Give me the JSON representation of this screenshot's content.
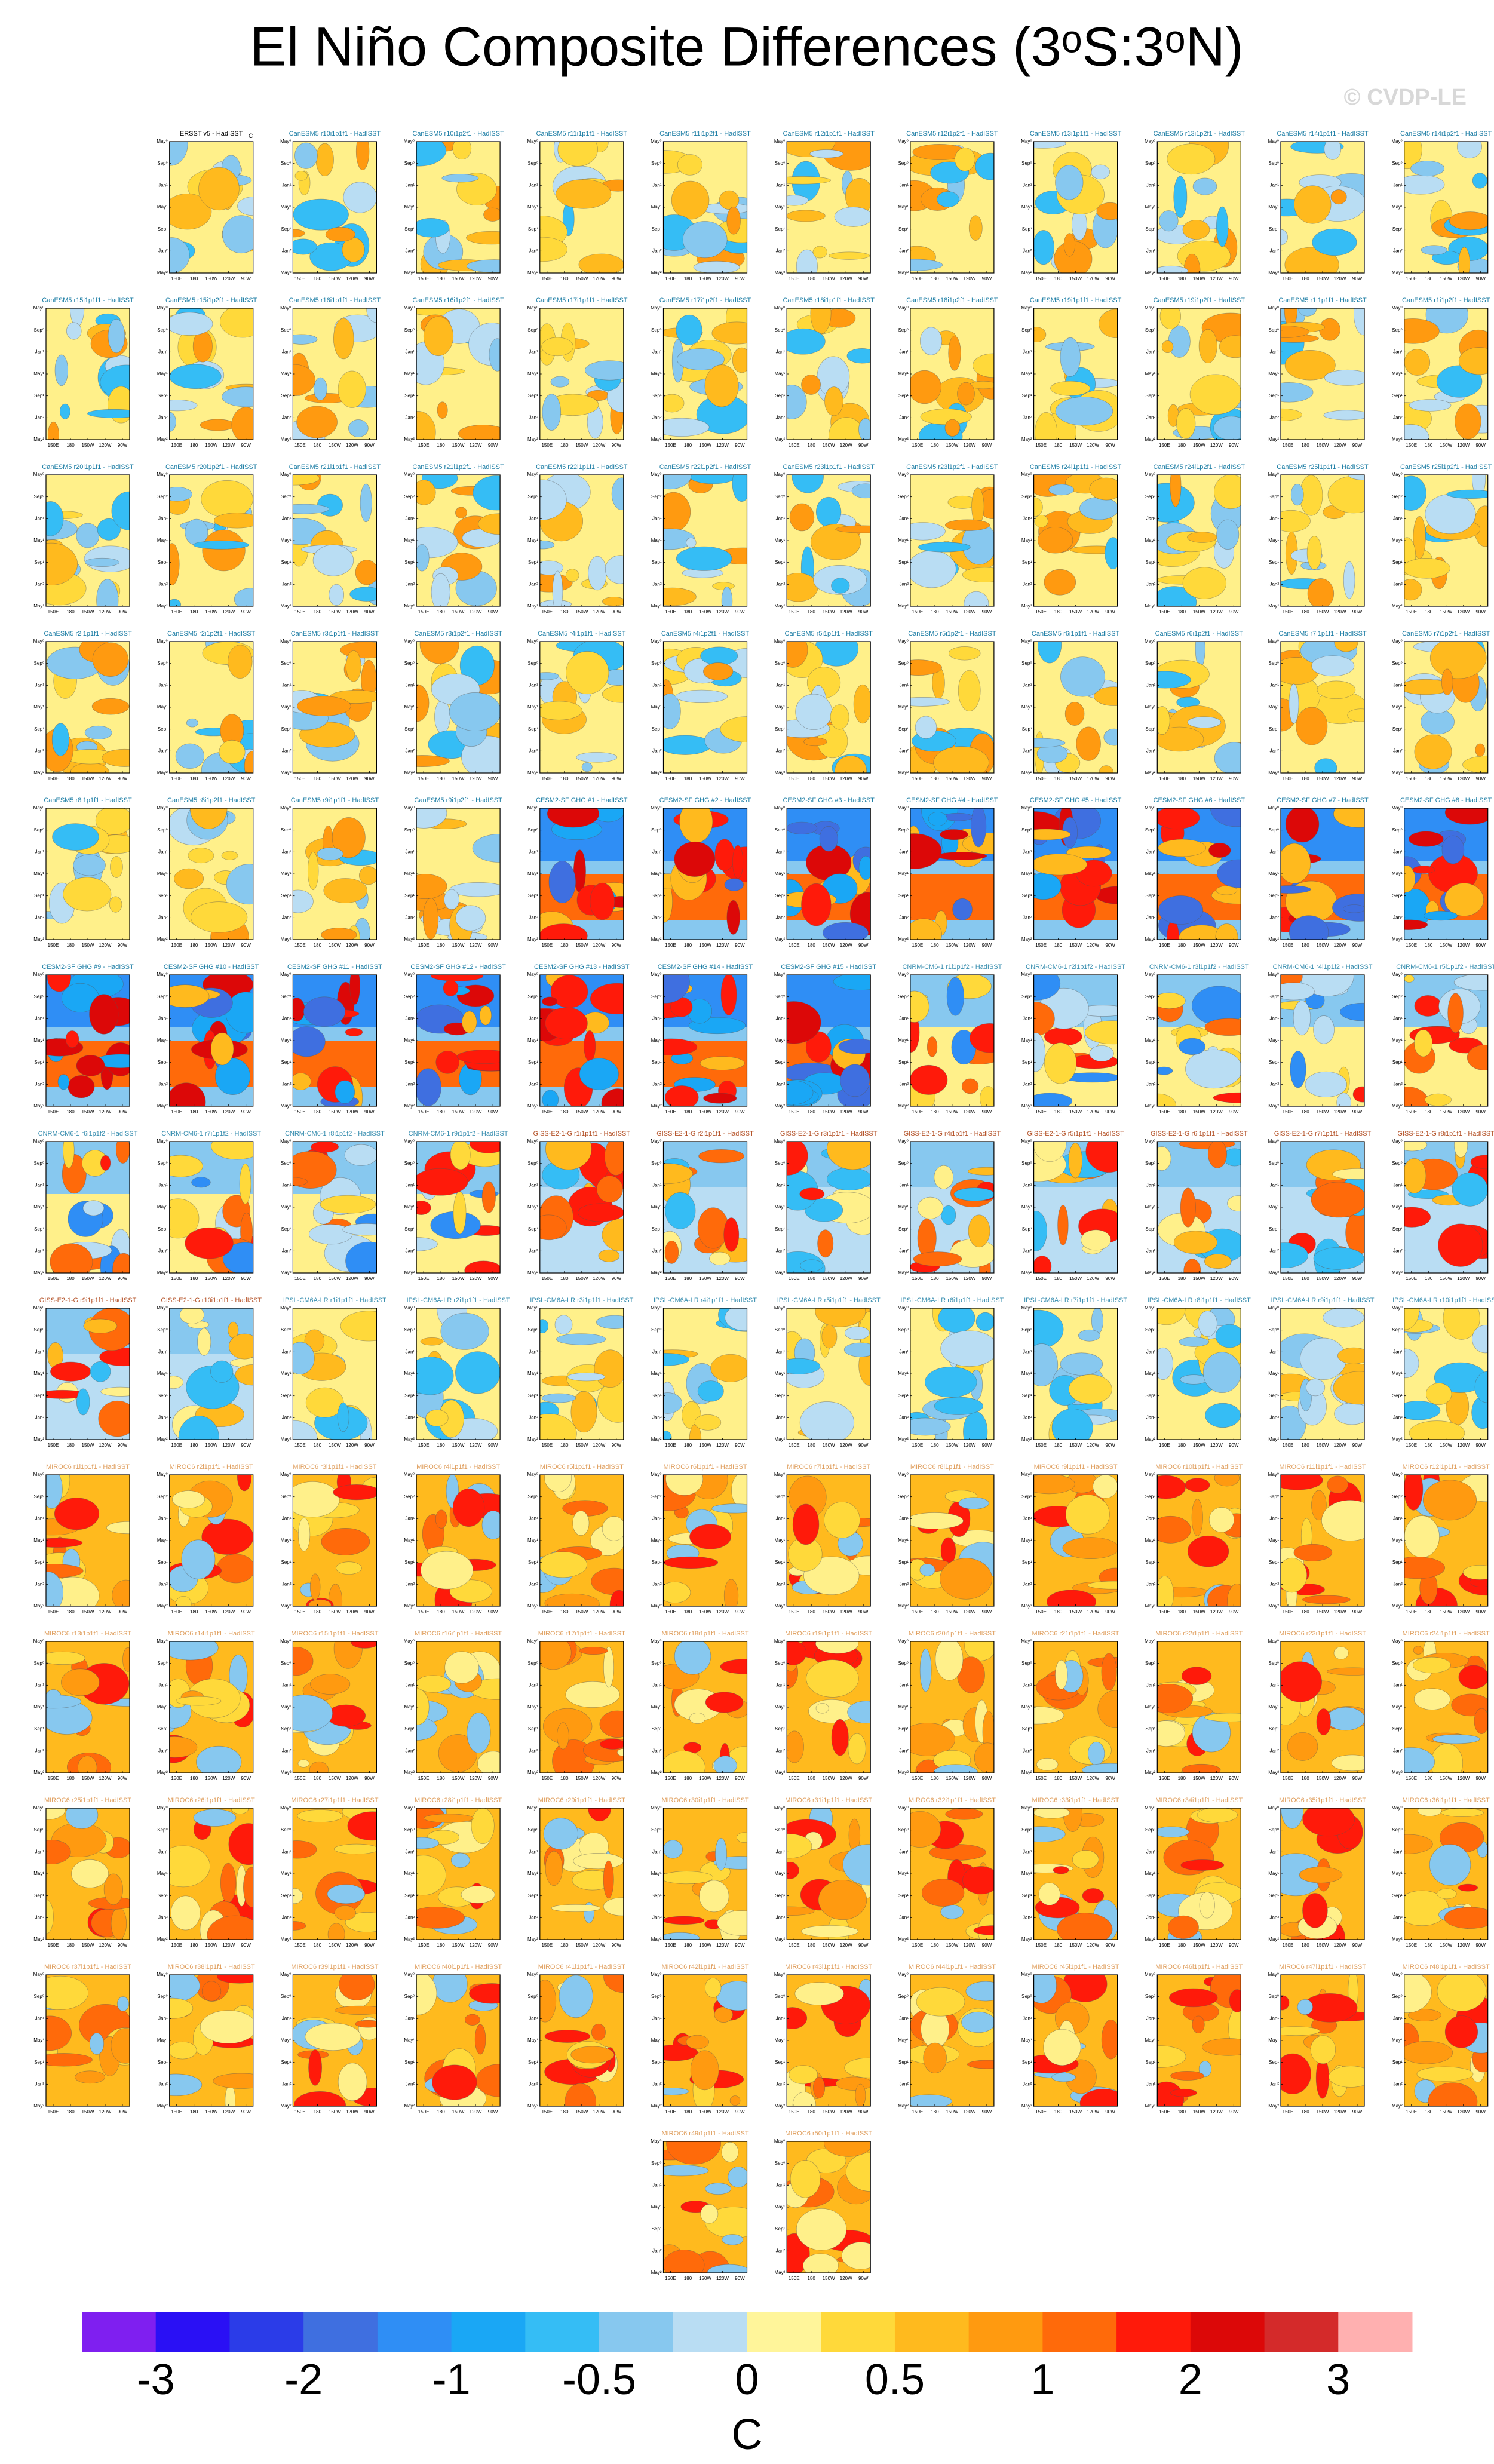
{
  "chart_data": {
    "type": "panel-grid",
    "title": "El Niño Composite Differences (3ᵒS:3ᵒN)",
    "watermark": "© CVDP-LE",
    "panel_xticks": [
      "150E",
      "180",
      "150W",
      "120W",
      "90W"
    ],
    "panel_yticks": [
      "May⁰",
      "Sep⁰",
      "Jan¹",
      "May¹",
      "Sep¹",
      "Jan²",
      "May²"
    ],
    "groups": [
      {
        "title_color": "#000000",
        "unit": "C",
        "panels": [
          "ERSST v5 - HadISST"
        ]
      },
      {
        "title_color": "#1f7fa6",
        "panels": [
          "CanESM5 r10i1p1f1 - HadISST",
          "CanESM5 r10i1p2f1 - HadISST",
          "CanESM5 r11i1p1f1 - HadISST",
          "CanESM5 r11i1p2f1 - HadISST",
          "CanESM5 r12i1p1f1 - HadISST",
          "CanESM5 r12i1p2f1 - HadISST",
          "CanESM5 r13i1p1f1 - HadISST",
          "CanESM5 r13i1p2f1 - HadISST",
          "CanESM5 r14i1p1f1 - HadISST",
          "CanESM5 r14i1p2f1 - HadISST",
          "CanESM5 r15i1p1f1 - HadISST",
          "CanESM5 r15i1p2f1 - HadISST",
          "CanESM5 r16i1p1f1 - HadISST",
          "CanESM5 r16i1p2f1 - HadISST",
          "CanESM5 r17i1p1f1 - HadISST",
          "CanESM5 r17i1p2f1 - HadISST",
          "CanESM5 r18i1p1f1 - HadISST",
          "CanESM5 r18i1p2f1 - HadISST",
          "CanESM5 r19i1p1f1 - HadISST",
          "CanESM5 r19i1p2f1 - HadISST",
          "CanESM5 r1i1p1f1 - HadISST",
          "CanESM5 r1i1p2f1 - HadISST",
          "CanESM5 r20i1p1f1 - HadISST",
          "CanESM5 r20i1p2f1 - HadISST",
          "CanESM5 r21i1p1f1 - HadISST",
          "CanESM5 r21i1p2f1 - HadISST",
          "CanESM5 r22i1p1f1 - HadISST",
          "CanESM5 r22i1p2f1 - HadISST",
          "CanESM5 r23i1p1f1 - HadISST",
          "CanESM5 r23i1p2f1 - HadISST",
          "CanESM5 r24i1p1f1 - HadISST",
          "CanESM5 r24i1p2f1 - HadISST",
          "CanESM5 r25i1p1f1 - HadISST",
          "CanESM5 r25i1p2f1 - HadISST",
          "CanESM5 r2i1p1f1 - HadISST",
          "CanESM5 r2i1p2f1 - HadISST",
          "CanESM5 r3i1p1f1 - HadISST",
          "CanESM5 r3i1p2f1 - HadISST",
          "CanESM5 r4i1p1f1 - HadISST",
          "CanESM5 r4i1p2f1 - HadISST",
          "CanESM5 r5i1p1f1 - HadISST",
          "CanESM5 r5i1p2f1 - HadISST",
          "CanESM5 r6i1p1f1 - HadISST",
          "CanESM5 r6i1p2f1 - HadISST",
          "CanESM5 r7i1p1f1 - HadISST",
          "CanESM5 r7i1p2f1 - HadISST",
          "CanESM5 r8i1p1f1 - HadISST",
          "CanESM5 r8i1p2f1 - HadISST",
          "CanESM5 r9i1p1f1 - HadISST",
          "CanESM5 r9i1p2f1 - HadISST"
        ]
      },
      {
        "title_color": "#1f7fa6",
        "panels": [
          "CESM2-SF GHG #1 - HadISST",
          "CESM2-SF GHG #2 - HadISST",
          "CESM2-SF GHG #3 - HadISST",
          "CESM2-SF GHG #4 - HadISST",
          "CESM2-SF GHG #5 - HadISST",
          "CESM2-SF GHG #6 - HadISST",
          "CESM2-SF GHG #7 - HadISST",
          "CESM2-SF GHG #8 - HadISST",
          "CESM2-SF GHG #9 - HadISST",
          "CESM2-SF GHG #10 - HadISST",
          "CESM2-SF GHG #11 - HadISST",
          "CESM2-SF GHG #12 - HadISST",
          "CESM2-SF GHG #13 - HadISST",
          "CESM2-SF GHG #14 - HadISST",
          "CESM2-SF GHG #15 - HadISST"
        ]
      },
      {
        "title_color": "#3a8fb0",
        "panels": [
          "CNRM-CM6-1 r1i1p1f2 - HadISST",
          "CNRM-CM6-1 r2i1p1f2 - HadISST",
          "CNRM-CM6-1 r3i1p1f2 - HadISST",
          "CNRM-CM6-1 r4i1p1f2 - HadISST",
          "CNRM-CM6-1 r5i1p1f2 - HadISST",
          "CNRM-CM6-1 r6i1p1f2 - HadISST",
          "CNRM-CM6-1 r7i1p1f2 - HadISST",
          "CNRM-CM6-1 r8i1p1f2 - HadISST",
          "CNRM-CM6-1 r9i1p1f2 - HadISST"
        ]
      },
      {
        "title_color": "#b5542a",
        "panels": [
          "GISS-E2-1-G r1i1p1f1 - HadISST",
          "GISS-E2-1-G r2i1p1f1 - HadISST",
          "GISS-E2-1-G r3i1p1f1 - HadISST",
          "GISS-E2-1-G r4i1p1f1 - HadISST",
          "GISS-E2-1-G r5i1p1f1 - HadISST",
          "GISS-E2-1-G r6i1p1f1 - HadISST",
          "GISS-E2-1-G r7i1p1f1 - HadISST",
          "GISS-E2-1-G r8i1p1f1 - HadISST",
          "GISS-E2-1-G r9i1p1f1 - HadISST",
          "GISS-E2-1-G r10i1p1f1 - HadISST"
        ]
      },
      {
        "title_color": "#3a8fb0",
        "panels": [
          "IPSL-CM6A-LR r1i1p1f1 - HadISST",
          "IPSL-CM6A-LR r2i1p1f1 - HadISST",
          "IPSL-CM6A-LR r3i1p1f1 - HadISST",
          "IPSL-CM6A-LR r4i1p1f1 - HadISST",
          "IPSL-CM6A-LR r5i1p1f1 - HadISST",
          "IPSL-CM6A-LR r6i1p1f1 - HadISST",
          "IPSL-CM6A-LR r7i1p1f1 - HadISST",
          "IPSL-CM6A-LR r8i1p1f1 - HadISST",
          "IPSL-CM6A-LR r9i1p1f1 - HadISST",
          "IPSL-CM6A-LR r10i1p1f1 - HadISST"
        ]
      },
      {
        "title_color": "#e0a060",
        "panels": [
          "MIROC6 r1i1p1f1 - HadISST",
          "MIROC6 r2i1p1f1 - HadISST",
          "MIROC6 r3i1p1f1 - HadISST",
          "MIROC6 r4i1p1f1 - HadISST",
          "MIROC6 r5i1p1f1 - HadISST",
          "MIROC6 r6i1p1f1 - HadISST",
          "MIROC6 r7i1p1f1 - HadISST",
          "MIROC6 r8i1p1f1 - HadISST",
          "MIROC6 r9i1p1f1 - HadISST",
          "MIROC6 r10i1p1f1 - HadISST",
          "MIROC6 r11i1p1f1 - HadISST",
          "MIROC6 r12i1p1f1 - HadISST",
          "MIROC6 r13i1p1f1 - HadISST",
          "MIROC6 r14i1p1f1 - HadISST",
          "MIROC6 r15i1p1f1 - HadISST",
          "MIROC6 r16i1p1f1 - HadISST",
          "MIROC6 r17i1p1f1 - HadISST",
          "MIROC6 r18i1p1f1 - HadISST",
          "MIROC6 r19i1p1f1 - HadISST",
          "MIROC6 r20i1p1f1 - HadISST",
          "MIROC6 r21i1p1f1 - HadISST",
          "MIROC6 r22i1p1f1 - HadISST",
          "MIROC6 r23i1p1f1 - HadISST",
          "MIROC6 r24i1p1f1 - HadISST",
          "MIROC6 r25i1p1f1 - HadISST",
          "MIROC6 r26i1p1f1 - HadISST",
          "MIROC6 r27i1p1f1 - HadISST",
          "MIROC6 r28i1p1f1 - HadISST",
          "MIROC6 r29i1p1f1 - HadISST",
          "MIROC6 r30i1p1f1 - HadISST",
          "MIROC6 r31i1p1f1 - HadISST",
          "MIROC6 r32i1p1f1 - HadISST",
          "MIROC6 r33i1p1f1 - HadISST",
          "MIROC6 r34i1p1f1 - HadISST",
          "MIROC6 r35i1p1f1 - HadISST",
          "MIROC6 r36i1p1f1 - HadISST",
          "MIROC6 r37i1p1f1 - HadISST",
          "MIROC6 r38i1p1f1 - HadISST",
          "MIROC6 r39i1p1f1 - HadISST",
          "MIROC6 r40i1p1f1 - HadISST",
          "MIROC6 r41i1p1f1 - HadISST",
          "MIROC6 r42i1p1f1 - HadISST",
          "MIROC6 r43i1p1f1 - HadISST",
          "MIROC6 r44i1p1f1 - HadISST",
          "MIROC6 r45i1p1f1 - HadISST",
          "MIROC6 r46i1p1f1 - HadISST",
          "MIROC6 r47i1p1f1 - HadISST",
          "MIROC6 r48i1p1f1 - HadISST",
          "MIROC6 r49i1p1f1 - HadISST",
          "MIROC6 r50i1p1f1 - HadISST"
        ]
      }
    ],
    "colorbar": {
      "colors": [
        "#7f1ff0",
        "#2a10f5",
        "#2b3ce8",
        "#3f6fe0",
        "#2f8ef5",
        "#1aa7f5",
        "#35bdf5",
        "#87c8ef",
        "#b9ddf3",
        "#fff59a",
        "#ffd93a",
        "#ffba1e",
        "#ff9a10",
        "#ff6a0a",
        "#ff1a0a",
        "#dc0808",
        "#d42a2a",
        "#ffb0b0"
      ],
      "ticks": [
        -3,
        -2,
        -1,
        -0.5,
        0,
        0.5,
        1,
        2,
        3
      ],
      "unit": "C"
    }
  }
}
